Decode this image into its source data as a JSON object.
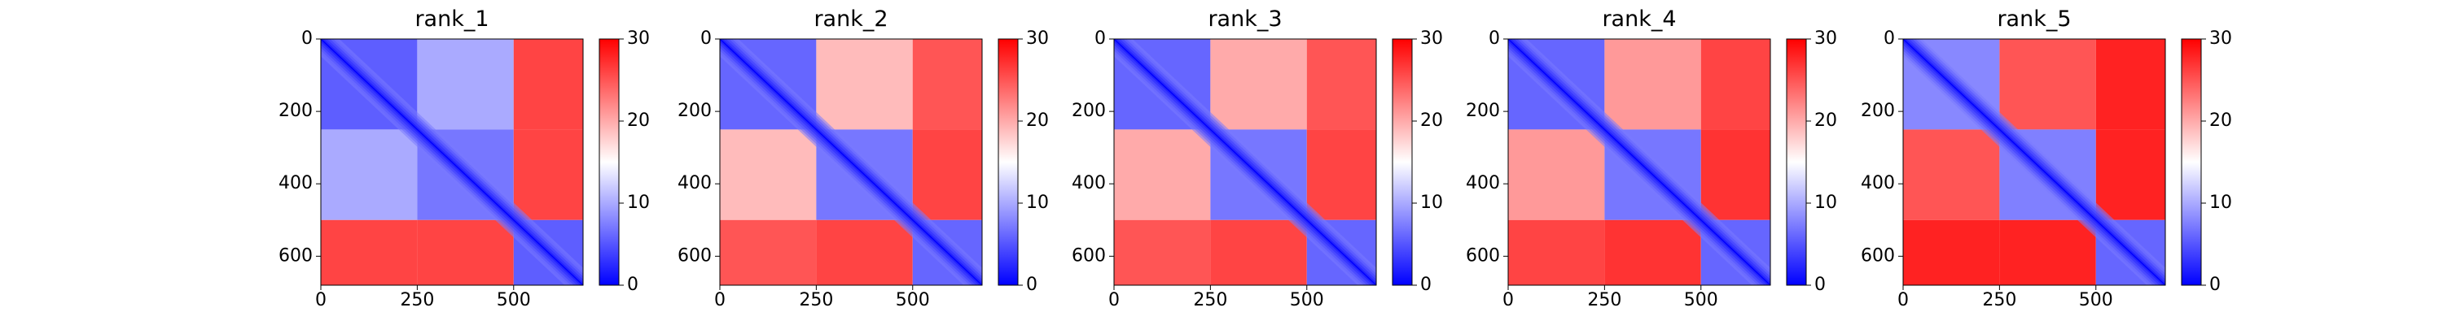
{
  "chart_data": {
    "type": "heatmap",
    "cmap": "bwr",
    "colors": {
      "low": "#0000ff",
      "mid": "#ffffff",
      "high": "#ff0000"
    },
    "clim": [
      0,
      30
    ],
    "colorbar_ticks": [
      0,
      10,
      20,
      30
    ],
    "xlim": [
      0,
      680
    ],
    "ylim": [
      680,
      0
    ],
    "xticks": [
      0,
      250,
      500
    ],
    "yticks": [
      0,
      200,
      400,
      600
    ],
    "domain_boundaries": [
      0,
      250,
      500,
      680
    ],
    "panels": [
      {
        "title": "rank_1",
        "intra_domain": [
          5.5,
          7.0,
          5.5
        ],
        "inter_domain": [
          [
            5.5,
            10,
            26
          ],
          [
            10,
            7.0,
            26
          ],
          [
            26,
            26,
            5.5
          ]
        ]
      },
      {
        "title": "rank_2",
        "intra_domain": [
          6.0,
          7.0,
          6.0
        ],
        "inter_domain": [
          [
            6.0,
            19,
            25
          ],
          [
            19,
            7.0,
            26
          ],
          [
            25,
            26,
            6.0
          ]
        ]
      },
      {
        "title": "rank_3",
        "intra_domain": [
          6.0,
          7.0,
          6.0
        ],
        "inter_domain": [
          [
            6.0,
            20,
            25
          ],
          [
            20,
            7.0,
            26
          ],
          [
            25,
            26,
            6.0
          ]
        ]
      },
      {
        "title": "rank_4",
        "intra_domain": [
          6.0,
          7.0,
          6.0
        ],
        "inter_domain": [
          [
            6.0,
            21,
            26
          ],
          [
            21,
            7.0,
            27
          ],
          [
            26,
            27,
            6.0
          ]
        ]
      },
      {
        "title": "rank_5",
        "intra_domain": [
          8.0,
          7.5,
          6.0
        ],
        "inter_domain": [
          [
            8.0,
            25,
            28
          ],
          [
            25,
            7.5,
            28
          ],
          [
            28,
            28,
            6.0
          ]
        ]
      }
    ]
  }
}
